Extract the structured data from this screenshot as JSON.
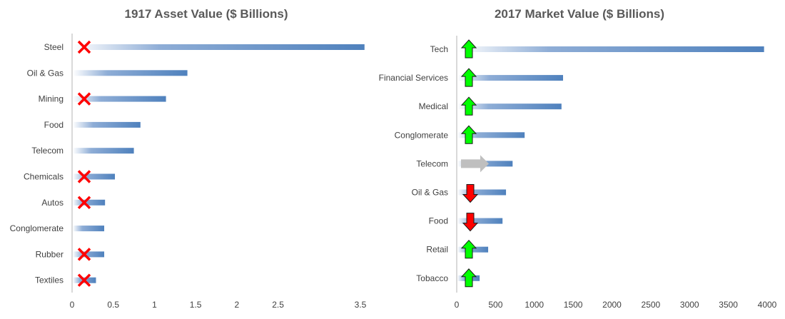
{
  "colors": {
    "bar": "#4f81bd",
    "axis": "#d9d9d9",
    "cross": "#ff0000",
    "up": "#00ff00",
    "down": "#ff0000",
    "flat": "#bfbfbf"
  },
  "chart_data": [
    {
      "type": "bar",
      "orientation": "horizontal",
      "title": "1917 Asset Value ($ Billions)",
      "categories": [
        "Steel",
        "Oil & Gas",
        "Mining",
        "Food",
        "Telecom",
        "Chemicals",
        "Autos",
        "Conglomerate",
        "Rubber",
        "Textiles"
      ],
      "values": [
        3.55,
        1.4,
        1.14,
        0.83,
        0.75,
        0.52,
        0.4,
        0.39,
        0.39,
        0.29
      ],
      "markers": [
        "cross",
        "none",
        "cross",
        "none",
        "none",
        "cross",
        "cross",
        "none",
        "cross",
        "cross"
      ],
      "xlim": [
        0,
        3.5
      ],
      "ticks": [
        "0",
        "0.5",
        "1",
        "1.5",
        "2",
        "2.5",
        "3.5"
      ],
      "tick_values": [
        0,
        0.5,
        1,
        1.5,
        2,
        2.5,
        3.5
      ],
      "grid": false
    },
    {
      "type": "bar",
      "orientation": "horizontal",
      "title": "2017 Market Value ($ Billions)",
      "categories": [
        "Tech",
        "Financial Services",
        "Medical",
        "Conglomerate",
        "Telecom",
        "Oil & Gas",
        "Food",
        "Retail",
        "Tobacco"
      ],
      "values": [
        3960,
        1370,
        1350,
        875,
        720,
        635,
        590,
        405,
        295
      ],
      "markers": [
        "up",
        "up",
        "up",
        "up",
        "right",
        "down",
        "down",
        "up",
        "up"
      ],
      "xlim": [
        0,
        4000
      ],
      "ticks": [
        "0",
        "500",
        "1000",
        "1500",
        "2000",
        "2500",
        "3000",
        "3500",
        "4000"
      ],
      "tick_values": [
        0,
        500,
        1000,
        1500,
        2000,
        2500,
        3000,
        3500,
        4000
      ],
      "grid": false
    }
  ]
}
